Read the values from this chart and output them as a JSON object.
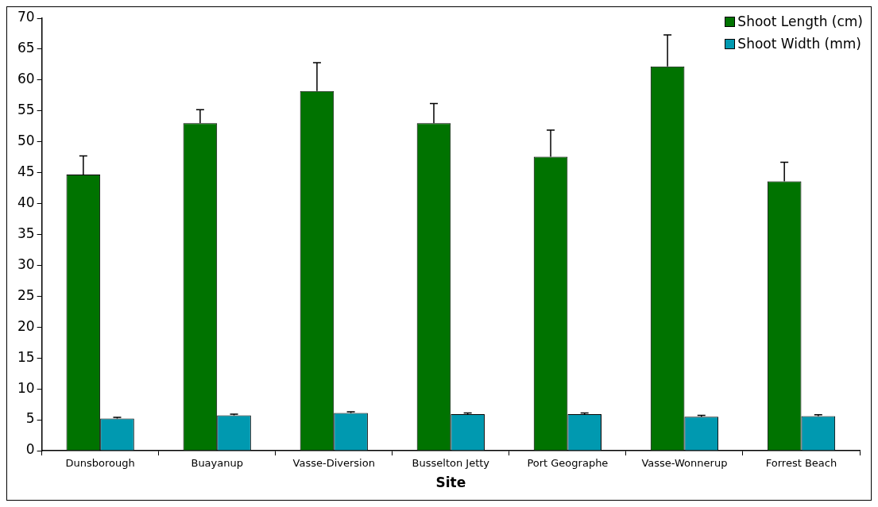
{
  "chart_data": {
    "type": "bar",
    "xlabel": "Site",
    "categories": [
      "Dunsborough",
      "Buayanup",
      "Vasse-Diversion",
      "Busselton Jetty",
      "Port Geographe",
      "Vasse-Wonnerup",
      "Forrest Beach"
    ],
    "series": [
      {
        "name": "Shoot Length (cm)",
        "color": "#007300",
        "values": [
          44.7,
          53.0,
          58.2,
          53.0,
          47.6,
          62.2,
          43.6
        ],
        "errors": [
          [
            44.7,
            47.7
          ],
          [
            53.0,
            55.2
          ],
          [
            58.2,
            62.8
          ],
          [
            53.0,
            56.2
          ],
          [
            47.6,
            51.9
          ],
          [
            62.2,
            67.3
          ],
          [
            43.6,
            46.7
          ]
        ]
      },
      {
        "name": "Shoot Width (mm)",
        "color": "#0099b0",
        "values": [
          5.2,
          5.7,
          6.1,
          5.9,
          5.9,
          5.5,
          5.6
        ],
        "errors": [
          [
            5.2,
            5.4
          ],
          [
            5.7,
            5.9
          ],
          [
            6.1,
            6.3
          ],
          [
            5.9,
            6.1
          ],
          [
            5.9,
            6.1
          ],
          [
            5.5,
            5.7
          ],
          [
            5.6,
            5.8
          ]
        ]
      }
    ],
    "ylim": [
      0,
      70
    ],
    "yticks": [
      0,
      5,
      10,
      15,
      20,
      25,
      30,
      35,
      40,
      45,
      50,
      55,
      60,
      65,
      70
    ],
    "grid": false,
    "legend": "top right"
  }
}
